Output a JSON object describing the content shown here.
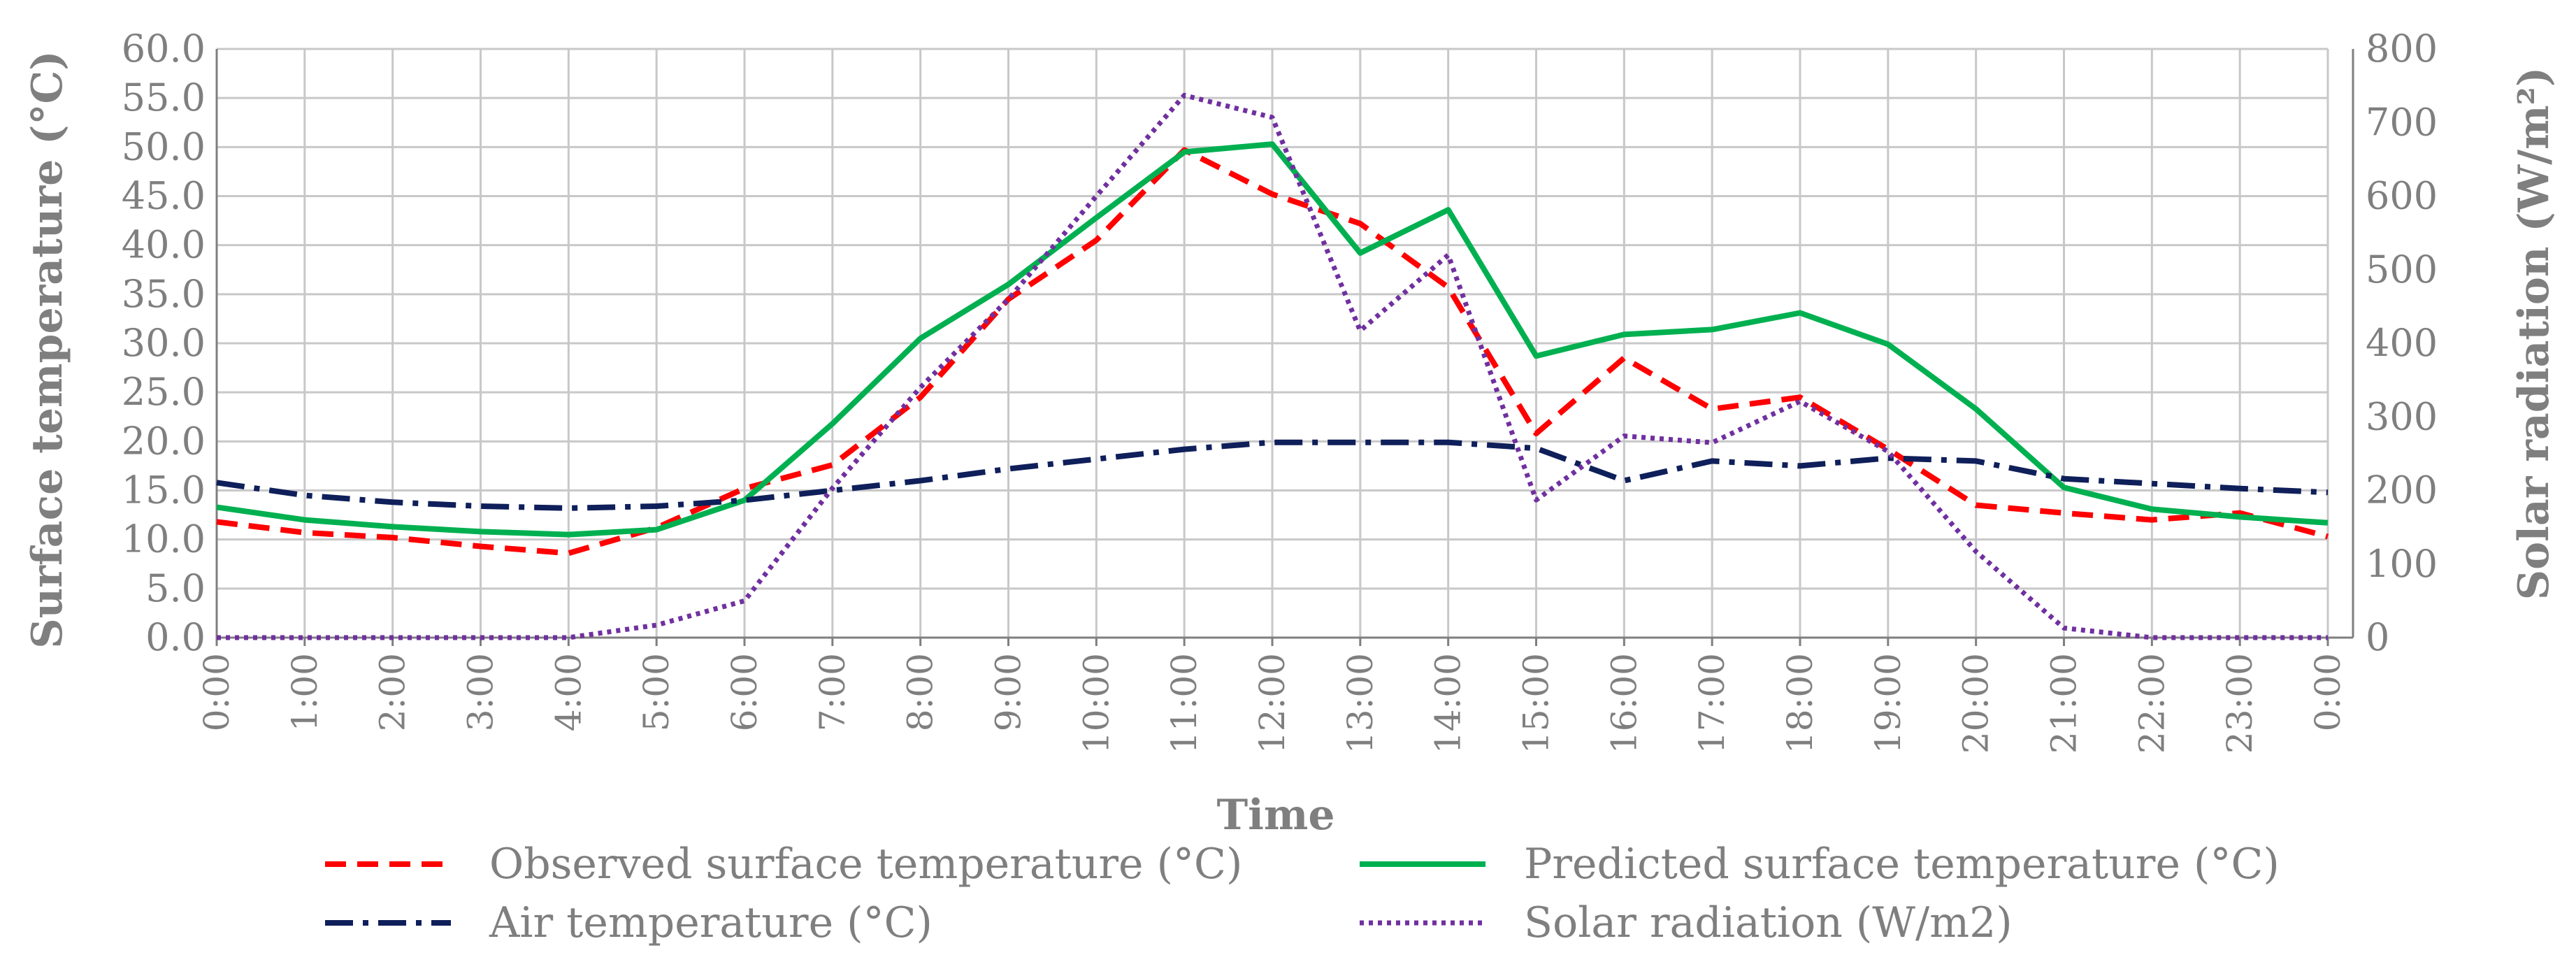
{
  "chart_data": {
    "type": "line",
    "title": "",
    "xlabel": "Time",
    "ylabel": "Surface temperature (°C)",
    "y2label": "Solar radiation (W/m²)",
    "ylim": [
      0,
      60
    ],
    "y2lim": [
      0,
      800
    ],
    "yticks": [
      "0.0",
      "5.0",
      "10.0",
      "15.0",
      "20.0",
      "25.0",
      "30.0",
      "35.0",
      "40.0",
      "45.0",
      "50.0",
      "55.0",
      "60.0"
    ],
    "y2ticks": [
      "0",
      "100",
      "200",
      "300",
      "400",
      "500",
      "600",
      "700",
      "800"
    ],
    "categories": [
      "0:00",
      "1:00",
      "2:00",
      "3:00",
      "4:00",
      "5:00",
      "6:00",
      "7:00",
      "8:00",
      "9:00",
      "10:00",
      "11:00",
      "12:00",
      "13:00",
      "14:00",
      "15:00",
      "16:00",
      "17:00",
      "18:00",
      "19:00",
      "20:00",
      "21:00",
      "22:00",
      "23:00",
      "0:00"
    ],
    "grid": true,
    "legend_position": "bottom",
    "series": [
      {
        "name": "Observed surface temperature (°C)",
        "axis": "left",
        "color": "#ff0000",
        "style": "dashed",
        "values": [
          11.8,
          10.7,
          10.2,
          9.3,
          8.6,
          11.2,
          15.2,
          17.6,
          24.5,
          34.5,
          40.5,
          49.7,
          45.2,
          42.2,
          35.7,
          20.8,
          28.5,
          23.3,
          24.5,
          19.2,
          13.5,
          12.7,
          12.0,
          12.7,
          10.3
        ]
      },
      {
        "name": "Predicted surface temperature (°C)",
        "axis": "left",
        "color": "#00b050",
        "style": "solid",
        "values": [
          13.3,
          12.0,
          11.3,
          10.8,
          10.5,
          11.0,
          14.0,
          21.8,
          30.5,
          36.0,
          42.8,
          49.5,
          50.3,
          39.2,
          43.6,
          28.7,
          30.9,
          31.4,
          33.1,
          29.9,
          23.3,
          15.3,
          13.1,
          12.3,
          11.7
        ]
      },
      {
        "name": "Air temperature (°C)",
        "axis": "left",
        "color": "#0f1f5a",
        "style": "dashdot",
        "values": [
          15.8,
          14.5,
          13.8,
          13.4,
          13.2,
          13.4,
          14.0,
          15.0,
          16.0,
          17.2,
          18.2,
          19.2,
          19.9,
          19.9,
          19.9,
          19.3,
          16.0,
          18.0,
          17.5,
          18.3,
          18.0,
          16.2,
          15.7,
          15.2,
          14.8
        ]
      },
      {
        "name": "Solar radiation  (W/m2)",
        "axis": "right",
        "color": "#7030a0",
        "style": "dotted",
        "values": [
          0,
          0,
          0,
          0,
          0,
          17,
          50,
          203,
          340,
          460,
          600,
          737,
          707,
          417,
          520,
          187,
          274,
          265,
          321,
          253,
          117,
          13,
          0,
          0,
          0
        ]
      }
    ]
  }
}
